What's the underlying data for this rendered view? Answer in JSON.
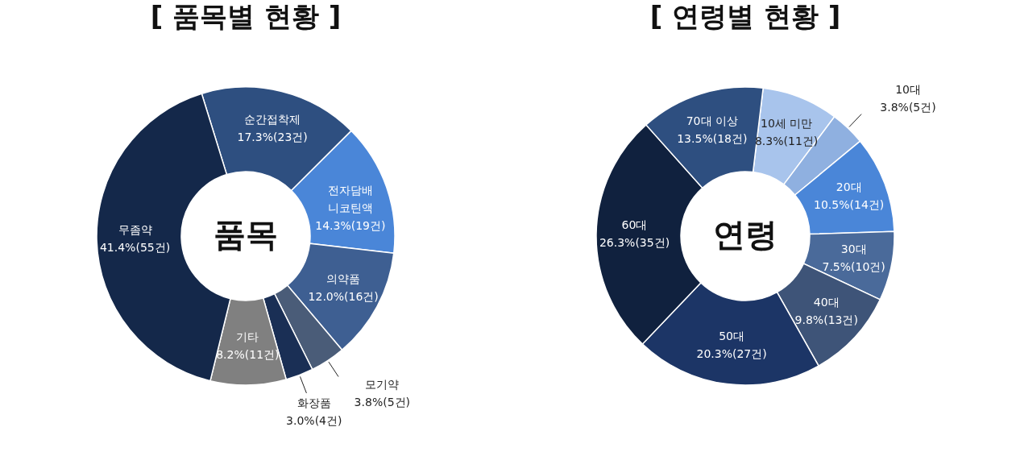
{
  "chart_data": [
    {
      "type": "donut",
      "title": "[ 품목별 현황 ]",
      "annotations": [
        "품목"
      ],
      "legend": false,
      "categories": [
        "순간접착제",
        "전자담배 니코틴액",
        "의약품",
        "모기약",
        "화장품",
        "기타",
        "무좀약"
      ],
      "values": [
        17.3,
        14.3,
        12.0,
        3.8,
        3.0,
        8.2,
        41.4
      ],
      "value_labels": [
        "17.3%(23건)",
        "14.3%(19건)",
        "12.0%(16건)",
        "3.8%(5건)",
        "3.0%(4건)",
        "8.2%(11건)",
        "41.4%(55건)"
      ],
      "colors": [
        "#2e4f80",
        "#4a86d8",
        "#3e5f92",
        "#4a5c78",
        "#1a2f55",
        "#808080",
        "#14284a"
      ]
    },
    {
      "type": "donut",
      "title": "[ 연령별 현황 ]",
      "annotations": [
        "연령"
      ],
      "legend": false,
      "categories": [
        "10세 미만",
        "10대",
        "20대",
        "30대",
        "40대",
        "50대",
        "60대",
        "70대 이상"
      ],
      "values": [
        8.3,
        3.8,
        10.5,
        7.5,
        9.8,
        20.3,
        26.3,
        13.5
      ],
      "value_labels": [
        "8.3%(11건)",
        "3.8%(5건)",
        "10.5%(14건)",
        "7.5%(10건)",
        "9.8%(13건)",
        "20.3%(27건)",
        "26.3%(35건)",
        "13.5%(18건)"
      ],
      "colors": [
        "#a8c4ec",
        "#8fb0e0",
        "#4a86d8",
        "#4a6a9a",
        "#3e5478",
        "#1c3566",
        "#10213e",
        "#2e4f80"
      ]
    }
  ]
}
